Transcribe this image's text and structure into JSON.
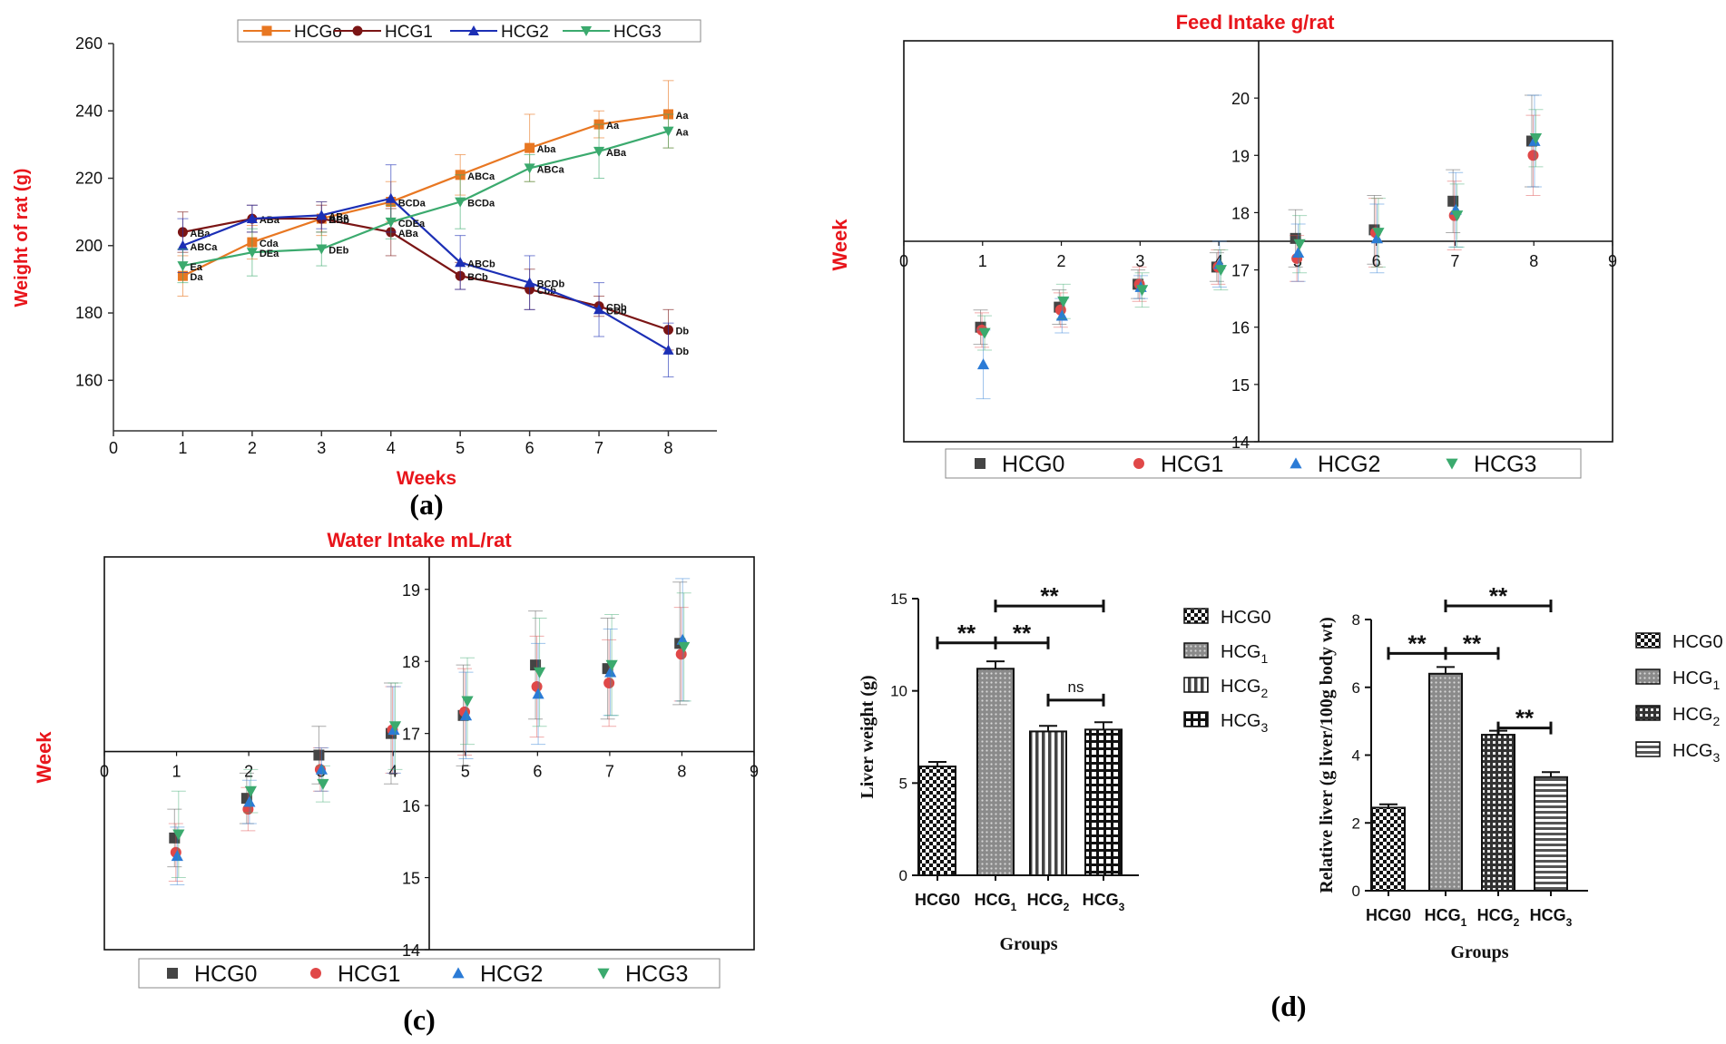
{
  "panel_labels": [
    "(a)",
    "(c)",
    "(d)"
  ],
  "chart_data": [
    {
      "id": "a",
      "type": "line",
      "title": "",
      "xlabel": "Weeks",
      "ylabel": "Weight of rat (g)",
      "xlim": [
        0,
        8.7
      ],
      "ylim": [
        145,
        260
      ],
      "xticks": [
        "0",
        "1",
        "2",
        "3",
        "4",
        "5",
        "6",
        "7",
        "8"
      ],
      "yticks": [
        "160",
        "180",
        "200",
        "220",
        "240",
        "260"
      ],
      "x": [
        1,
        2,
        3,
        4,
        5,
        6,
        7,
        8
      ],
      "series": [
        {
          "name": "HCGo",
          "color": "#E87722",
          "marker": "square",
          "values": [
            191,
            201,
            208,
            213,
            221,
            229,
            236,
            239
          ],
          "errors": [
            6,
            5,
            5,
            6,
            6,
            10,
            4,
            10
          ],
          "labels": [
            "Da",
            "Cda",
            "ABb",
            "BCDa",
            "ABCa",
            "Aba",
            "Aa",
            "Aa"
          ]
        },
        {
          "name": "HCG1",
          "color": "#7B1515",
          "marker": "circle",
          "values": [
            204,
            208,
            208,
            204,
            191,
            187,
            182,
            175
          ],
          "errors": [
            6,
            4,
            4,
            7,
            4,
            6,
            3,
            6
          ],
          "labels": [
            "ABa",
            "ABa",
            "BCb",
            "ABa",
            "BCb",
            "Cbb",
            "CDb",
            "Db"
          ]
        },
        {
          "name": "HCG2",
          "color": "#1C2FB5",
          "marker": "triangle-up",
          "values": [
            200,
            208,
            209,
            214,
            195,
            189,
            181,
            169
          ],
          "errors": [
            8,
            4,
            4,
            10,
            8,
            8,
            8,
            8
          ],
          "labels": [
            "ABCa",
            "",
            "ABa",
            "",
            "ABCb",
            "BCDb",
            "CDb",
            "Db"
          ]
        },
        {
          "name": "HCG3",
          "color": "#3BAA6E",
          "marker": "triangle-down",
          "values": [
            194,
            198,
            199,
            207,
            213,
            223,
            228,
            234
          ],
          "errors": [
            5,
            7,
            5,
            5,
            8,
            4,
            8,
            5
          ],
          "labels": [
            "Ea",
            "DEa",
            "DEb",
            "CDEa",
            "BCDa",
            "ABCa",
            "ABa",
            "Aa"
          ]
        }
      ]
    },
    {
      "id": "b",
      "type": "scatter",
      "title": "Feed Intake g/rat",
      "ylabel": "Week",
      "xlim": [
        0,
        9
      ],
      "ylim": [
        14,
        21
      ],
      "x_axis_at": 17.5,
      "xticks": [
        "0",
        "1",
        "2",
        "3",
        "4",
        "5",
        "6",
        "7",
        "8",
        "9"
      ],
      "yticks": [
        "14",
        "15",
        "16",
        "17",
        "18",
        "19",
        "20"
      ],
      "x": [
        1,
        2,
        3,
        4,
        5,
        6,
        7,
        8
      ],
      "series": [
        {
          "name": "HCG0",
          "color": "#444444",
          "marker": "square",
          "values": [
            16.0,
            16.35,
            16.75,
            17.05,
            17.55,
            17.7,
            18.2,
            19.25
          ],
          "errors": [
            0.3,
            0.3,
            0.25,
            0.25,
            0.5,
            0.6,
            0.55,
            0.8
          ]
        },
        {
          "name": "HCG1",
          "color": "#E04848",
          "marker": "circle",
          "values": [
            15.95,
            16.3,
            16.75,
            17.05,
            17.2,
            17.65,
            17.95,
            19.0
          ],
          "errors": [
            0.3,
            0.3,
            0.3,
            0.3,
            0.4,
            0.6,
            0.6,
            0.7
          ]
        },
        {
          "name": "HCG2",
          "color": "#2B7BD6",
          "marker": "triangle-up",
          "values": [
            15.35,
            16.2,
            16.7,
            17.1,
            17.3,
            17.55,
            18.05,
            19.25
          ],
          "errors": [
            0.6,
            0.3,
            0.2,
            0.4,
            0.5,
            0.6,
            0.65,
            0.8
          ]
        },
        {
          "name": "HCG3",
          "color": "#3BAA6E",
          "marker": "triangle-down",
          "values": [
            15.9,
            16.45,
            16.65,
            17.0,
            17.45,
            17.65,
            17.95,
            19.3
          ],
          "errors": [
            0.3,
            0.3,
            0.3,
            0.35,
            0.5,
            0.6,
            0.55,
            0.5
          ]
        }
      ]
    },
    {
      "id": "c",
      "type": "scatter",
      "title": "Water Intake mL/rat",
      "ylabel": "Week",
      "xlim": [
        0,
        9
      ],
      "ylim": [
        14,
        19.45
      ],
      "x_axis_at": 16.75,
      "xticks": [
        "0",
        "1",
        "2",
        "3",
        "4",
        "5",
        "6",
        "7",
        "8",
        "9"
      ],
      "yticks": [
        "14",
        "15",
        "16",
        "17",
        "18",
        "19"
      ],
      "x": [
        1,
        2,
        3,
        4,
        5,
        6,
        7,
        8
      ],
      "series": [
        {
          "name": "HCG0",
          "color": "#444444",
          "marker": "square",
          "values": [
            15.55,
            16.1,
            16.7,
            17.0,
            17.25,
            17.95,
            17.9,
            18.25
          ],
          "errors": [
            0.4,
            0.35,
            0.4,
            0.7,
            0.7,
            0.75,
            0.7,
            0.85
          ]
        },
        {
          "name": "HCG1",
          "color": "#E04848",
          "marker": "circle",
          "values": [
            15.35,
            15.95,
            16.5,
            17.05,
            17.3,
            17.65,
            17.7,
            18.1
          ],
          "errors": [
            0.4,
            0.3,
            0.3,
            0.6,
            0.6,
            0.7,
            0.6,
            0.65
          ]
        },
        {
          "name": "HCG2",
          "color": "#2B7BD6",
          "marker": "triangle-up",
          "values": [
            15.3,
            16.05,
            16.5,
            17.05,
            17.25,
            17.55,
            17.85,
            18.3
          ],
          "errors": [
            0.4,
            0.3,
            0.3,
            0.6,
            0.6,
            0.7,
            0.6,
            0.85
          ]
        },
        {
          "name": "HCG3",
          "color": "#3BAA6E",
          "marker": "triangle-down",
          "values": [
            15.6,
            16.2,
            16.3,
            17.1,
            17.45,
            17.85,
            17.95,
            18.2
          ],
          "errors": [
            0.6,
            0.3,
            0.25,
            0.6,
            0.6,
            0.75,
            0.7,
            0.75
          ]
        }
      ]
    },
    {
      "id": "d1",
      "type": "bar",
      "title": "",
      "xlabel": "Groups",
      "ylabel": "Liver weight (g)",
      "ylim": [
        0,
        15
      ],
      "yticks": [
        "0",
        "5",
        "10",
        "15"
      ],
      "categories": [
        {
          "base": "HCG0",
          "sub": ""
        },
        {
          "base": "HCG",
          "sub": "1"
        },
        {
          "base": "HCG",
          "sub": "2"
        },
        {
          "base": "HCG",
          "sub": "3"
        }
      ],
      "values": [
        5.9,
        11.2,
        7.8,
        7.9
      ],
      "errors": [
        0.25,
        0.4,
        0.3,
        0.4
      ],
      "patterns": [
        "checker",
        "dots",
        "vstripes",
        "grid"
      ],
      "legend": [
        {
          "base": "HCG0",
          "sub": ""
        },
        {
          "base": "HCG",
          "sub": "1"
        },
        {
          "base": "HCG",
          "sub": "2"
        },
        {
          "base": "HCG",
          "sub": "3"
        }
      ],
      "significance": [
        {
          "from": 0,
          "to": 1,
          "y": 12.6,
          "label": "**"
        },
        {
          "from": 1,
          "to": 2,
          "y": 12.6,
          "label": "**"
        },
        {
          "from": 1,
          "to": 3,
          "y": 14.6,
          "label": "**"
        },
        {
          "from": 2,
          "to": 3,
          "y": 9.5,
          "label": "ns"
        }
      ]
    },
    {
      "id": "d2",
      "type": "bar",
      "title": "",
      "xlabel": "Groups",
      "ylabel": "Relative liver (g liver/100g body wt)",
      "ylim": [
        0,
        8
      ],
      "yticks": [
        "0",
        "2",
        "4",
        "6",
        "8"
      ],
      "categories": [
        {
          "base": "HCG0",
          "sub": ""
        },
        {
          "base": "HCG",
          "sub": "1"
        },
        {
          "base": "HCG",
          "sub": "2"
        },
        {
          "base": "HCG",
          "sub": "3"
        }
      ],
      "values": [
        2.45,
        6.4,
        4.6,
        3.35
      ],
      "errors": [
        0.1,
        0.2,
        0.12,
        0.15
      ],
      "patterns": [
        "checker",
        "dots",
        "squares",
        "hstripes"
      ],
      "legend": [
        {
          "base": "HCG0",
          "sub": ""
        },
        {
          "base": "HCG",
          "sub": "1"
        },
        {
          "base": "HCG",
          "sub": "2"
        },
        {
          "base": "HCG",
          "sub": "3"
        }
      ],
      "significance": [
        {
          "from": 0,
          "to": 1,
          "y": 7.0,
          "label": "**"
        },
        {
          "from": 1,
          "to": 2,
          "y": 7.0,
          "label": "**"
        },
        {
          "from": 1,
          "to": 3,
          "y": 8.4,
          "label": "**"
        },
        {
          "from": 2,
          "to": 3,
          "y": 4.8,
          "label": "**"
        }
      ]
    }
  ]
}
